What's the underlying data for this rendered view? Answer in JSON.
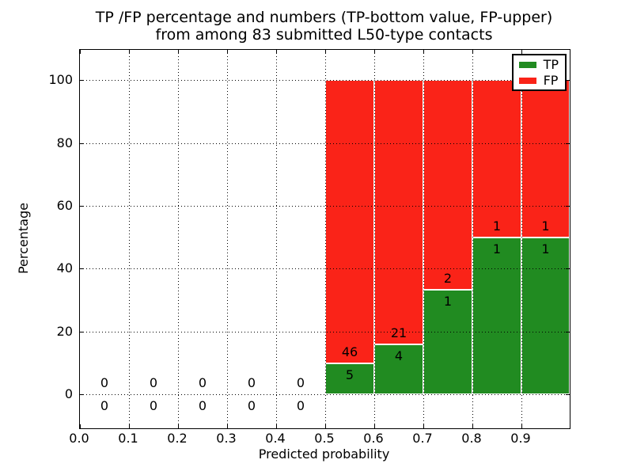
{
  "chart_data": {
    "type": "bar",
    "subtype": "stacked-percentage-histogram",
    "title_line1": "TP /FP percentage and numbers (TP-bottom value, FP-upper)",
    "title_line2": "from among 83 submitted L50-type contacts",
    "xlabel": "Predicted probability",
    "ylabel": "Percentage",
    "total_contacts": 83,
    "xlim": [
      0.0,
      1.0
    ],
    "ylim": [
      -10.8,
      109.6
    ],
    "xticks": [
      {
        "value": 0.0,
        "label": "0.0"
      },
      {
        "value": 0.1,
        "label": "0.1"
      },
      {
        "value": 0.2,
        "label": "0.2"
      },
      {
        "value": 0.3,
        "label": "0.3"
      },
      {
        "value": 0.4,
        "label": "0.4"
      },
      {
        "value": 0.5,
        "label": "0.5"
      },
      {
        "value": 0.6,
        "label": "0.6"
      },
      {
        "value": 0.7,
        "label": "0.7"
      },
      {
        "value": 0.8,
        "label": "0.8"
      },
      {
        "value": 0.9,
        "label": "0.9"
      }
    ],
    "yticks": [
      {
        "value": 0,
        "label": "0"
      },
      {
        "value": 20,
        "label": "20"
      },
      {
        "value": 40,
        "label": "40"
      },
      {
        "value": 60,
        "label": "60"
      },
      {
        "value": 80,
        "label": "80"
      },
      {
        "value": 100,
        "label": "100"
      }
    ],
    "grid": "dotted",
    "grid_above_bars": true,
    "bins": [
      {
        "range": [
          0.0,
          0.1
        ],
        "tp": 0,
        "fp": 0
      },
      {
        "range": [
          0.1,
          0.2
        ],
        "tp": 0,
        "fp": 0
      },
      {
        "range": [
          0.2,
          0.3
        ],
        "tp": 0,
        "fp": 0
      },
      {
        "range": [
          0.3,
          0.4
        ],
        "tp": 0,
        "fp": 0
      },
      {
        "range": [
          0.4,
          0.5
        ],
        "tp": 0,
        "fp": 0
      },
      {
        "range": [
          0.5,
          0.6
        ],
        "tp": 5,
        "fp": 46
      },
      {
        "range": [
          0.6,
          0.7
        ],
        "tp": 4,
        "fp": 21
      },
      {
        "range": [
          0.7,
          0.8
        ],
        "tp": 1,
        "fp": 2
      },
      {
        "range": [
          0.8,
          0.9
        ],
        "tp": 1,
        "fp": 1
      },
      {
        "range": [
          0.9,
          1.0
        ],
        "tp": 1,
        "fp": 1
      }
    ],
    "legend": {
      "position": "upper-right",
      "entries": [
        {
          "label": "TP",
          "color": "#218b21"
        },
        {
          "label": "FP",
          "color": "#fa2318"
        }
      ]
    },
    "colors": {
      "tp": "#218b21",
      "fp": "#fa2318",
      "bar_edge": "#ffffff",
      "grid": "#000000",
      "frame": "#000000",
      "background": "#ffffff",
      "text": "#000000"
    }
  }
}
